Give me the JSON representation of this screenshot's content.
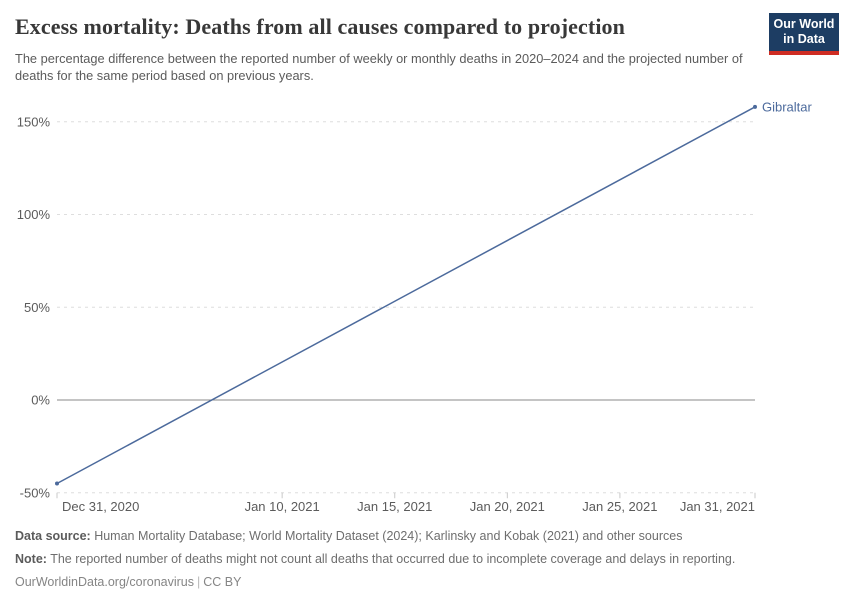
{
  "header": {
    "title": "Excess mortality: Deaths from all causes compared to projection",
    "subtitle": "The percentage difference between the reported number of weekly or monthly deaths in 2020–2024 and the projected number of deaths for the same period based on previous years.",
    "logo": {
      "line1": "Our World",
      "line2": "in Data",
      "bg_color": "#1d3d63",
      "stripe_color": "#cf2d23"
    }
  },
  "chart_data": {
    "type": "line",
    "title": "Excess mortality: Deaths from all causes compared to projection",
    "xlabel": "",
    "ylabel": "",
    "ylim": [
      -50,
      160
    ],
    "x_domain_days": [
      0,
      31
    ],
    "grid": "dashed horizontal gridlines, solid zero line",
    "legend_position": "end-of-line label",
    "colors": {
      "series": "#4c6a9c",
      "gridline": "#dedede",
      "zero_line": "#8a8a8a",
      "tick_text": "#5b5b5b"
    },
    "y_axis": {
      "ticks": [
        {
          "value": 150,
          "label": "150%"
        },
        {
          "value": 100,
          "label": "100%"
        },
        {
          "value": 50,
          "label": "50%"
        },
        {
          "value": 0,
          "label": "0%"
        },
        {
          "value": -50,
          "label": "-50%"
        }
      ]
    },
    "x_axis": {
      "ticks": [
        {
          "day": 0,
          "label": "Dec 31, 2020"
        },
        {
          "day": 10,
          "label": "Jan 10, 2021"
        },
        {
          "day": 15,
          "label": "Jan 15, 2021"
        },
        {
          "day": 20,
          "label": "Jan 20, 2021"
        },
        {
          "day": 25,
          "label": "Jan 25, 2021"
        },
        {
          "day": 31,
          "label": "Jan 31, 2021"
        }
      ]
    },
    "series": [
      {
        "name": "Gibraltar",
        "color": "#4c6a9c",
        "points": [
          {
            "date": "Dec 31, 2020",
            "day": 0,
            "value": -45
          },
          {
            "date": "Jan 31, 2021",
            "day": 31,
            "value": 158
          }
        ]
      }
    ]
  },
  "footer": {
    "data_source_label": "Data source:",
    "data_source_text": " Human Mortality Database; World Mortality Dataset (2024); Karlinsky and Kobak (2021) and other sources",
    "note_label": "Note:",
    "note_text": " The reported number of deaths might not count all deaths that occurred due to incomplete coverage and delays in reporting.",
    "url": "OurWorldinData.org/coronavirus",
    "separator": "|",
    "license": "CC BY"
  }
}
